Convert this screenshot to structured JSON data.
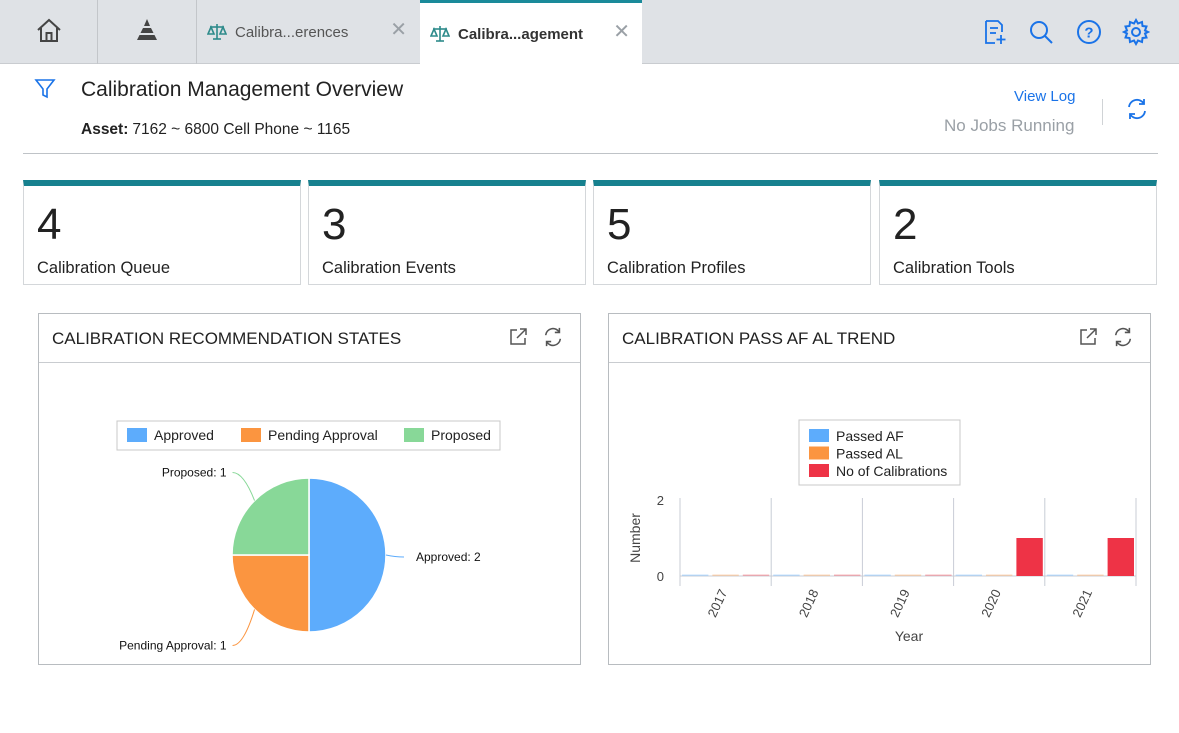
{
  "tabs": [
    {
      "label": "Calibra...erences",
      "active": false
    },
    {
      "label": "Calibra...agement",
      "active": true
    }
  ],
  "icons": {
    "home": "home-icon",
    "pyramid": "pyramid-icon",
    "tab_icon": "scales-icon",
    "close": "close-icon",
    "new_doc": "new-document-icon",
    "search": "search-icon",
    "help": "help-icon",
    "settings": "gear-icon",
    "filter": "filter-icon",
    "refresh": "refresh-icon",
    "external": "external-link-icon"
  },
  "close_glyph": "✕",
  "header": {
    "title": "Calibration Management Overview",
    "asset_label": "Asset:",
    "asset_value": "7162 ~ 6800 Cell Phone ~ 1165",
    "view_log": "View Log",
    "jobs_status": "No Jobs Running"
  },
  "cards": [
    {
      "value": "4",
      "label": "Calibration Queue"
    },
    {
      "value": "3",
      "label": "Calibration Events"
    },
    {
      "value": "5",
      "label": "Calibration Profiles"
    },
    {
      "value": "2",
      "label": "Calibration Tools"
    }
  ],
  "colors": {
    "accent": "#17818f",
    "link": "#1a73e8",
    "approved": "#5dacfc",
    "pending": "#fb9540",
    "proposed": "#88d898",
    "passed_af": "#5dacfc",
    "passed_al": "#fb9540",
    "no_of_calibrations": "#ee3346"
  },
  "widgets": [
    {
      "title": "CALIBRATION RECOMMENDATION STATES"
    },
    {
      "title": "CALIBRATION PASS AF AL TREND"
    }
  ],
  "chart_data": [
    {
      "type": "pie",
      "title": "CALIBRATION RECOMMENDATION STATES",
      "legend_position": "top",
      "slices": [
        {
          "name": "Approved",
          "value": 2,
          "label": "Approved: 2"
        },
        {
          "name": "Pending Approval",
          "value": 1,
          "label": "Pending Approval: 1"
        },
        {
          "name": "Proposed",
          "value": 1,
          "label": "Proposed: 1"
        }
      ]
    },
    {
      "type": "bar",
      "title": "CALIBRATION PASS AF AL TREND",
      "xlabel": "Year",
      "ylabel": "Number",
      "categories": [
        "2017",
        "2018",
        "2019",
        "2020",
        "2021"
      ],
      "ylim": [
        0,
        2
      ],
      "yticks": [
        "0",
        "2"
      ],
      "legend_position": "top",
      "grid": true,
      "series": [
        {
          "name": "Passed AF",
          "values": [
            0,
            0,
            0,
            0,
            0
          ]
        },
        {
          "name": "Passed AL",
          "values": [
            0,
            0,
            0,
            0,
            0
          ]
        },
        {
          "name": "No of Calibrations",
          "values": [
            0,
            0,
            0,
            1,
            1
          ]
        }
      ]
    }
  ]
}
